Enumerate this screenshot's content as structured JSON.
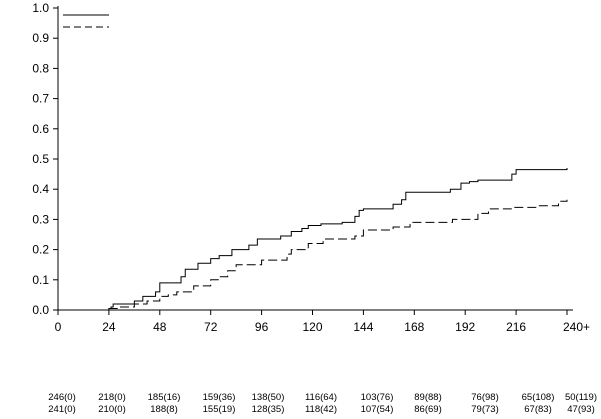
{
  "chart_data": {
    "type": "line",
    "title": "",
    "xlabel": "",
    "ylabel": "",
    "xlim": [
      0,
      240
    ],
    "ylim": [
      0,
      1.0
    ],
    "x_ticks": [
      0,
      24,
      48,
      72,
      96,
      120,
      144,
      168,
      192,
      216,
      240
    ],
    "x_tick_labels": [
      "0",
      "24",
      "48",
      "72",
      "96",
      "120",
      "144",
      "168",
      "192",
      "216",
      "240+"
    ],
    "y_ticks": [
      0.0,
      0.1,
      0.2,
      0.3,
      0.4,
      0.5,
      0.6,
      0.7,
      0.8,
      0.9,
      1.0
    ],
    "y_tick_labels": [
      "0.0",
      "0.1",
      "0.2",
      "0.3",
      "0.4",
      "0.5",
      "0.6",
      "0.7",
      "0.8",
      "0.9",
      "1.0"
    ],
    "grid": false,
    "legend": "top-left",
    "series": [
      {
        "name": "solid",
        "style": "solid",
        "color": "#000000",
        "steps": [
          [
            0,
            0
          ],
          [
            24,
            0.005
          ],
          [
            25,
            0.01
          ],
          [
            26,
            0.02
          ],
          [
            36,
            0.03
          ],
          [
            40,
            0.045
          ],
          [
            46,
            0.06
          ],
          [
            48,
            0.09
          ],
          [
            58,
            0.11
          ],
          [
            60,
            0.135
          ],
          [
            66,
            0.155
          ],
          [
            72,
            0.17
          ],
          [
            76,
            0.18
          ],
          [
            82,
            0.2
          ],
          [
            90,
            0.215
          ],
          [
            94,
            0.235
          ],
          [
            105,
            0.245
          ],
          [
            110,
            0.26
          ],
          [
            115,
            0.27
          ],
          [
            118,
            0.28
          ],
          [
            124,
            0.285
          ],
          [
            134,
            0.29
          ],
          [
            140,
            0.31
          ],
          [
            142,
            0.33
          ],
          [
            144,
            0.335
          ],
          [
            158,
            0.35
          ],
          [
            162,
            0.365
          ],
          [
            164,
            0.39
          ],
          [
            185,
            0.4
          ],
          [
            190,
            0.42
          ],
          [
            194,
            0.425
          ],
          [
            198,
            0.43
          ],
          [
            214,
            0.45
          ],
          [
            216,
            0.465
          ],
          [
            240,
            0.47
          ]
        ]
      },
      {
        "name": "dashed",
        "style": "dashed",
        "color": "#000000",
        "steps": [
          [
            0,
            0
          ],
          [
            24,
            0.005
          ],
          [
            28,
            0.01
          ],
          [
            36,
            0.02
          ],
          [
            42,
            0.03
          ],
          [
            48,
            0.045
          ],
          [
            52,
            0.05
          ],
          [
            56,
            0.06
          ],
          [
            64,
            0.08
          ],
          [
            72,
            0.1
          ],
          [
            76,
            0.11
          ],
          [
            80,
            0.13
          ],
          [
            84,
            0.15
          ],
          [
            96,
            0.165
          ],
          [
            108,
            0.185
          ],
          [
            110,
            0.2
          ],
          [
            118,
            0.22
          ],
          [
            125,
            0.235
          ],
          [
            140,
            0.245
          ],
          [
            144,
            0.265
          ],
          [
            158,
            0.275
          ],
          [
            166,
            0.29
          ],
          [
            186,
            0.3
          ],
          [
            198,
            0.32
          ],
          [
            203,
            0.335
          ],
          [
            214,
            0.34
          ],
          [
            226,
            0.345
          ],
          [
            236,
            0.36
          ],
          [
            240,
            0.365
          ]
        ]
      }
    ],
    "risk_table": {
      "rows": [
        [
          "246(0)",
          "218(0)",
          "185(16)",
          "159(36)",
          "138(50)",
          "116(64)",
          "103(76)",
          "89(88)",
          "76(98)",
          "65(108)",
          "50(119)"
        ],
        [
          "241(0)",
          "210(0)",
          "188(8)",
          "155(19)",
          "128(35)",
          "118(42)",
          "107(54)",
          "86(69)",
          "79(73)",
          "67(83)",
          "47(93)"
        ]
      ]
    }
  }
}
